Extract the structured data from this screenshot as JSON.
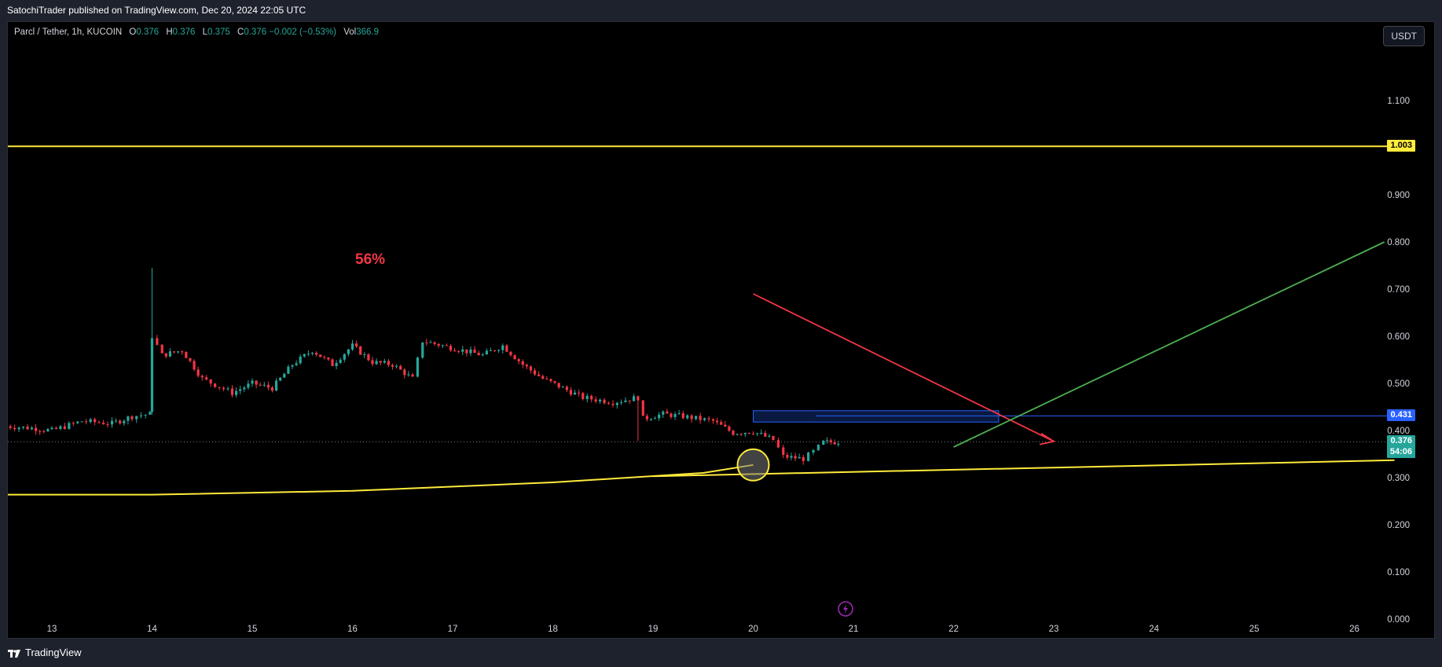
{
  "header": {
    "published_text": "SatochiTrader published on TradingView.com, Dec 20, 2024 22:05 UTC"
  },
  "legend": {
    "symbol": "Parcl / Tether, 1h, KUCOIN",
    "o_label": "O",
    "o_value": "0.376",
    "h_label": "H",
    "h_value": "0.376",
    "l_label": "L",
    "l_value": "0.375",
    "c_label": "C",
    "c_value": "0.376",
    "change": "−0.002 (−0.53%)",
    "vol_label": "Vol",
    "vol_value": "366.9"
  },
  "currency_button": "USDT",
  "footer": {
    "brand": "TradingView"
  },
  "annotation": {
    "percent": "56%"
  },
  "price_tags": {
    "resistance": "1.003",
    "zone": "0.431",
    "last": "0.376",
    "countdown": "54:06"
  },
  "colors": {
    "up": "#26a69a",
    "down": "#f23645",
    "yellow": "#ffeb3b",
    "blue": "#2962ff",
    "green": "#4caf50",
    "red_arrow": "#f23645",
    "price_line": "#26a69a"
  },
  "icons": {
    "lightning": "lightning-icon",
    "logo": "tradingview-logo-icon"
  },
  "chart_data": {
    "type": "candlestick",
    "y_axis": {
      "min": 0.0,
      "max": 1.1,
      "ticks": [
        "0.000",
        "0.100",
        "0.200",
        "0.300",
        "0.400",
        "0.500",
        "0.600",
        "0.700",
        "0.800",
        "0.900",
        "1.100"
      ]
    },
    "x_axis": {
      "ticks": [
        "13",
        "14",
        "15",
        "16",
        "17",
        "18",
        "19",
        "20",
        "21",
        "22",
        "23",
        "24",
        "25",
        "26"
      ]
    },
    "price_path": [
      [
        12.5,
        0.41
      ],
      [
        12.8,
        0.405
      ],
      [
        13.0,
        0.4
      ],
      [
        13.3,
        0.42
      ],
      [
        13.6,
        0.415
      ],
      [
        13.8,
        0.43
      ],
      [
        13.98,
        0.435
      ],
      [
        14.0,
        0.6
      ],
      [
        14.1,
        0.56
      ],
      [
        14.3,
        0.57
      ],
      [
        14.5,
        0.51
      ],
      [
        14.8,
        0.48
      ],
      [
        15.0,
        0.5
      ],
      [
        15.2,
        0.49
      ],
      [
        15.4,
        0.54
      ],
      [
        15.6,
        0.57
      ],
      [
        15.8,
        0.54
      ],
      [
        16.0,
        0.58
      ],
      [
        16.2,
        0.545
      ],
      [
        16.4,
        0.54
      ],
      [
        16.6,
        0.51
      ],
      [
        16.7,
        0.59
      ],
      [
        16.9,
        0.58
      ],
      [
        17.1,
        0.57
      ],
      [
        17.3,
        0.56
      ],
      [
        17.5,
        0.58
      ],
      [
        17.7,
        0.54
      ],
      [
        17.9,
        0.51
      ],
      [
        18.1,
        0.49
      ],
      [
        18.3,
        0.47
      ],
      [
        18.6,
        0.46
      ],
      [
        18.85,
        0.47
      ],
      [
        18.9,
        0.425
      ],
      [
        19.1,
        0.435
      ],
      [
        19.3,
        0.43
      ],
      [
        19.6,
        0.42
      ],
      [
        19.8,
        0.395
      ],
      [
        20.0,
        0.398
      ],
      [
        20.2,
        0.38
      ],
      [
        20.3,
        0.345
      ],
      [
        20.5,
        0.34
      ],
      [
        20.6,
        0.355
      ],
      [
        20.7,
        0.375
      ],
      [
        20.85,
        0.376
      ]
    ],
    "spike_high": {
      "x": 14.0,
      "y": 0.745
    },
    "drawings": {
      "horizontal_resistance": 1.003,
      "supply_zone": {
        "x_start": 20.0,
        "x_end": 22.45,
        "top": 0.442,
        "bottom": 0.418
      },
      "zone_line": 0.431,
      "red_arrow": {
        "from": [
          20.0,
          0.69
        ],
        "to": [
          23.0,
          0.377
        ]
      },
      "green_line": {
        "from": [
          22.0,
          0.365
        ],
        "to": [
          26.3,
          0.8
        ]
      },
      "yellow_curve": [
        [
          12.45,
          0.264
        ],
        [
          14.0,
          0.264
        ],
        [
          16.0,
          0.272
        ],
        [
          18.0,
          0.29
        ],
        [
          19.5,
          0.31
        ],
        [
          20.0,
          0.327
        ]
      ],
      "yellow_line": {
        "from": [
          19.0,
          0.303
        ],
        "to": [
          26.4,
          0.337
        ]
      },
      "yellow_circle": {
        "x": 20.0,
        "y": 0.327
      },
      "last_price_line": 0.376
    }
  }
}
